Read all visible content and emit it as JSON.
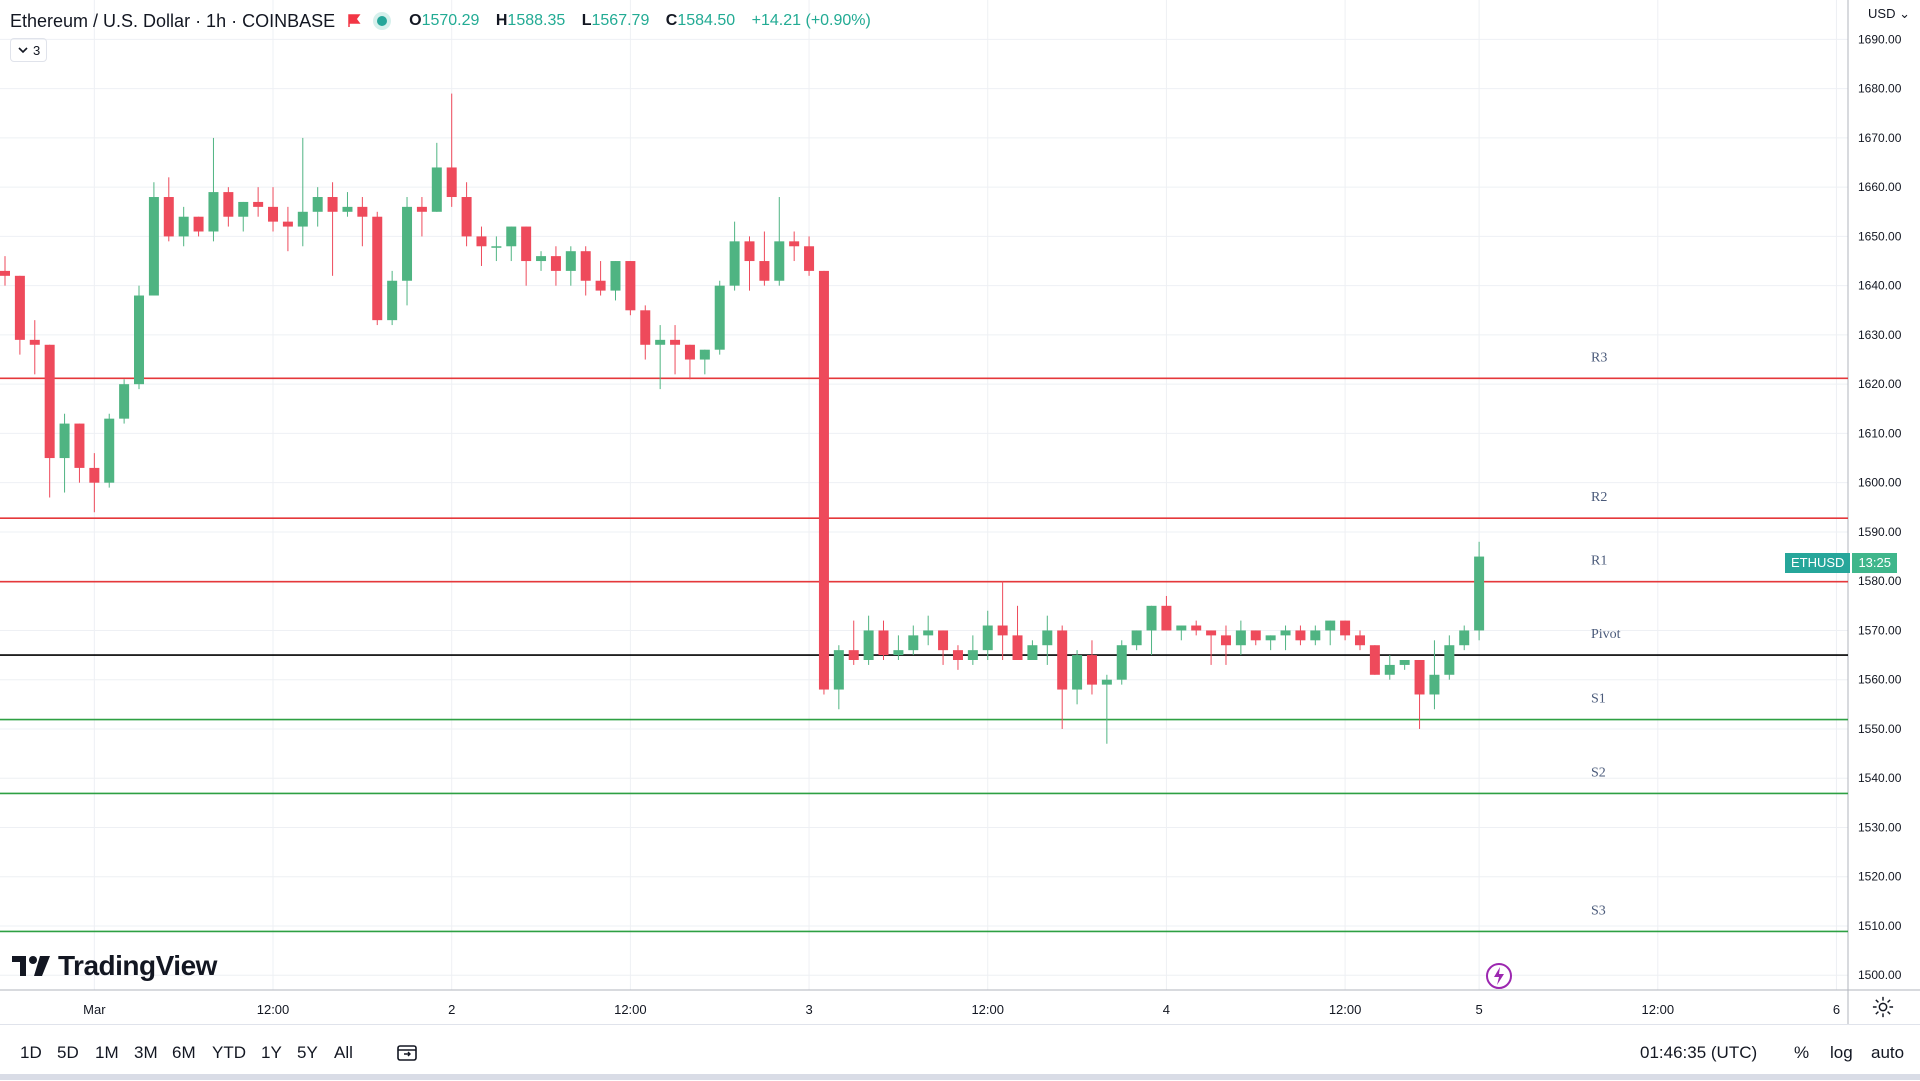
{
  "header": {
    "symbol": "Ethereum / U.S. Dollar · 1h · COINBASE",
    "open_label": "O",
    "open": "1570.29",
    "high_label": "H",
    "high": "1588.35",
    "low_label": "L",
    "low": "1567.79",
    "close_label": "C",
    "close": "1584.50",
    "change": "+14.21 (+0.90%)",
    "indicator_count": "3"
  },
  "currency_label": "USD",
  "price_badge": {
    "symbol": "ETHUSD",
    "countdown": "13:25"
  },
  "brand": "TradingView",
  "ranges": [
    "1D",
    "5D",
    "1M",
    "3M",
    "6M",
    "YTD",
    "1Y",
    "5Y",
    "All"
  ],
  "clock": "01:46:35 (UTC)",
  "options": {
    "percent": "%",
    "log": "log",
    "auto": "auto"
  },
  "colors": {
    "up": "#4fb482",
    "down": "#ee4a5b",
    "resistance": "#e5383b",
    "support": "#2ea043",
    "pivot": "#000000",
    "level_label": "#4a5a7a"
  },
  "chart_data": {
    "type": "candlestick",
    "ylim": [
      1497,
      1698
    ],
    "y_ticks": [
      1500,
      1510,
      1520,
      1530,
      1540,
      1550,
      1560,
      1570,
      1580,
      1590,
      1600,
      1610,
      1620,
      1630,
      1640,
      1650,
      1660,
      1670,
      1680,
      1690
    ],
    "x_ticks": [
      {
        "label": "Mar",
        "i": 6
      },
      {
        "label": "12:00",
        "i": 18
      },
      {
        "label": "2",
        "i": 30
      },
      {
        "label": "12:00",
        "i": 42
      },
      {
        "label": "3",
        "i": 54
      },
      {
        "label": "12:00",
        "i": 66
      },
      {
        "label": "4",
        "i": 78
      },
      {
        "label": "12:00",
        "i": 90
      },
      {
        "label": "5",
        "i": 99
      },
      {
        "label": "12:00",
        "i": 111
      },
      {
        "label": "6",
        "i": 123
      }
    ],
    "levels": [
      {
        "name": "R3",
        "value": 1621.2,
        "kind": "resistance"
      },
      {
        "name": "R2",
        "value": 1592.8,
        "kind": "resistance"
      },
      {
        "name": "R1",
        "value": 1579.9,
        "kind": "resistance"
      },
      {
        "name": "Pivot",
        "value": 1565.0,
        "kind": "pivot"
      },
      {
        "name": "S1",
        "value": 1551.9,
        "kind": "support"
      },
      {
        "name": "S2",
        "value": 1536.9,
        "kind": "support"
      },
      {
        "name": "S3",
        "value": 1508.9,
        "kind": "support"
      }
    ],
    "ohlc": [
      [
        1643,
        1646,
        1640,
        1642
      ],
      [
        1642,
        1642,
        1626,
        1629
      ],
      [
        1629,
        1633,
        1622,
        1628
      ],
      [
        1628,
        1628,
        1597,
        1605
      ],
      [
        1605,
        1614,
        1598,
        1612
      ],
      [
        1612,
        1612,
        1600,
        1603
      ],
      [
        1603,
        1606,
        1594,
        1600
      ],
      [
        1600,
        1614,
        1599,
        1613
      ],
      [
        1613,
        1621,
        1612,
        1620
      ],
      [
        1620,
        1640,
        1619,
        1638
      ],
      [
        1638,
        1661,
        1638,
        1658
      ],
      [
        1658,
        1662,
        1649,
        1650
      ],
      [
        1650,
        1656,
        1648,
        1654
      ],
      [
        1654,
        1654,
        1650,
        1651
      ],
      [
        1651,
        1670,
        1649,
        1659
      ],
      [
        1659,
        1660,
        1652,
        1654
      ],
      [
        1654,
        1657,
        1651,
        1657
      ],
      [
        1657,
        1660,
        1654,
        1656
      ],
      [
        1656,
        1660,
        1651,
        1653
      ],
      [
        1653,
        1656,
        1647,
        1652
      ],
      [
        1652,
        1670,
        1648,
        1655
      ],
      [
        1655,
        1660,
        1652,
        1658
      ],
      [
        1658,
        1661,
        1642,
        1655
      ],
      [
        1655,
        1659,
        1654,
        1656
      ],
      [
        1656,
        1658,
        1648,
        1654
      ],
      [
        1654,
        1655,
        1632,
        1633
      ],
      [
        1633,
        1643,
        1632,
        1641
      ],
      [
        1641,
        1658,
        1636,
        1656
      ],
      [
        1656,
        1658,
        1650,
        1655
      ],
      [
        1655,
        1669,
        1655,
        1664
      ],
      [
        1664,
        1679,
        1656,
        1658
      ],
      [
        1658,
        1661,
        1648,
        1650
      ],
      [
        1650,
        1652,
        1644,
        1648
      ],
      [
        1648,
        1650,
        1645,
        1648
      ],
      [
        1648,
        1652,
        1645,
        1652
      ],
      [
        1652,
        1652,
        1640,
        1645
      ],
      [
        1645,
        1647,
        1643,
        1646
      ],
      [
        1646,
        1648,
        1640,
        1643
      ],
      [
        1643,
        1648,
        1640,
        1647
      ],
      [
        1647,
        1648,
        1638,
        1641
      ],
      [
        1641,
        1645,
        1638,
        1639
      ],
      [
        1639,
        1645,
        1637,
        1645
      ],
      [
        1645,
        1645,
        1634,
        1635
      ],
      [
        1635,
        1636,
        1625,
        1628
      ],
      [
        1628,
        1632,
        1619,
        1629
      ],
      [
        1629,
        1632,
        1622,
        1628
      ],
      [
        1628,
        1628,
        1621,
        1625
      ],
      [
        1625,
        1627,
        1622,
        1627
      ],
      [
        1627,
        1641,
        1626,
        1640
      ],
      [
        1640,
        1653,
        1639,
        1649
      ],
      [
        1649,
        1650,
        1639,
        1645
      ],
      [
        1645,
        1651,
        1640,
        1641
      ],
      [
        1641,
        1658,
        1640,
        1649
      ],
      [
        1649,
        1651,
        1645,
        1648
      ],
      [
        1648,
        1650,
        1642,
        1643
      ],
      [
        1643,
        1643,
        1557,
        1558
      ],
      [
        1558,
        1567,
        1554,
        1566
      ],
      [
        1566,
        1572,
        1563,
        1564
      ],
      [
        1564,
        1573,
        1563,
        1570
      ],
      [
        1570,
        1572,
        1564,
        1565
      ],
      [
        1565,
        1569,
        1564,
        1566
      ],
      [
        1566,
        1571,
        1565,
        1569
      ],
      [
        1569,
        1573,
        1567,
        1570
      ],
      [
        1570,
        1570,
        1563,
        1566
      ],
      [
        1566,
        1567,
        1562,
        1564
      ],
      [
        1564,
        1569,
        1563,
        1566
      ],
      [
        1566,
        1574,
        1564,
        1571
      ],
      [
        1571,
        1580,
        1564,
        1569
      ],
      [
        1569,
        1575,
        1564,
        1564
      ],
      [
        1564,
        1568,
        1564,
        1567
      ],
      [
        1567,
        1573,
        1563,
        1570
      ],
      [
        1570,
        1571,
        1550,
        1558
      ],
      [
        1558,
        1566,
        1555,
        1565
      ],
      [
        1565,
        1568,
        1557,
        1559
      ],
      [
        1559,
        1561,
        1547,
        1560
      ],
      [
        1560,
        1568,
        1559,
        1567
      ],
      [
        1567,
        1570,
        1566,
        1570
      ],
      [
        1570,
        1575,
        1565,
        1575
      ],
      [
        1575,
        1577,
        1570,
        1570
      ],
      [
        1570,
        1571,
        1568,
        1571
      ],
      [
        1571,
        1572,
        1569,
        1570
      ],
      [
        1570,
        1570,
        1563,
        1569
      ],
      [
        1569,
        1571,
        1563,
        1567
      ],
      [
        1567,
        1572,
        1565,
        1570
      ],
      [
        1570,
        1570,
        1567,
        1568
      ],
      [
        1568,
        1569,
        1566,
        1569
      ],
      [
        1569,
        1571,
        1566,
        1570
      ],
      [
        1570,
        1571,
        1567,
        1568
      ],
      [
        1568,
        1571,
        1567,
        1570
      ],
      [
        1570,
        1572,
        1567,
        1572
      ],
      [
        1572,
        1572,
        1568,
        1569
      ],
      [
        1569,
        1570,
        1566,
        1567
      ],
      [
        1567,
        1567,
        1561,
        1561
      ],
      [
        1561,
        1565,
        1560,
        1563
      ],
      [
        1563,
        1564,
        1562,
        1564
      ],
      [
        1564,
        1564,
        1550,
        1557
      ],
      [
        1557,
        1568,
        1554,
        1561
      ],
      [
        1561,
        1569,
        1560,
        1567
      ],
      [
        1567,
        1571,
        1566,
        1570
      ],
      [
        1570,
        1588,
        1568,
        1585
      ]
    ]
  }
}
